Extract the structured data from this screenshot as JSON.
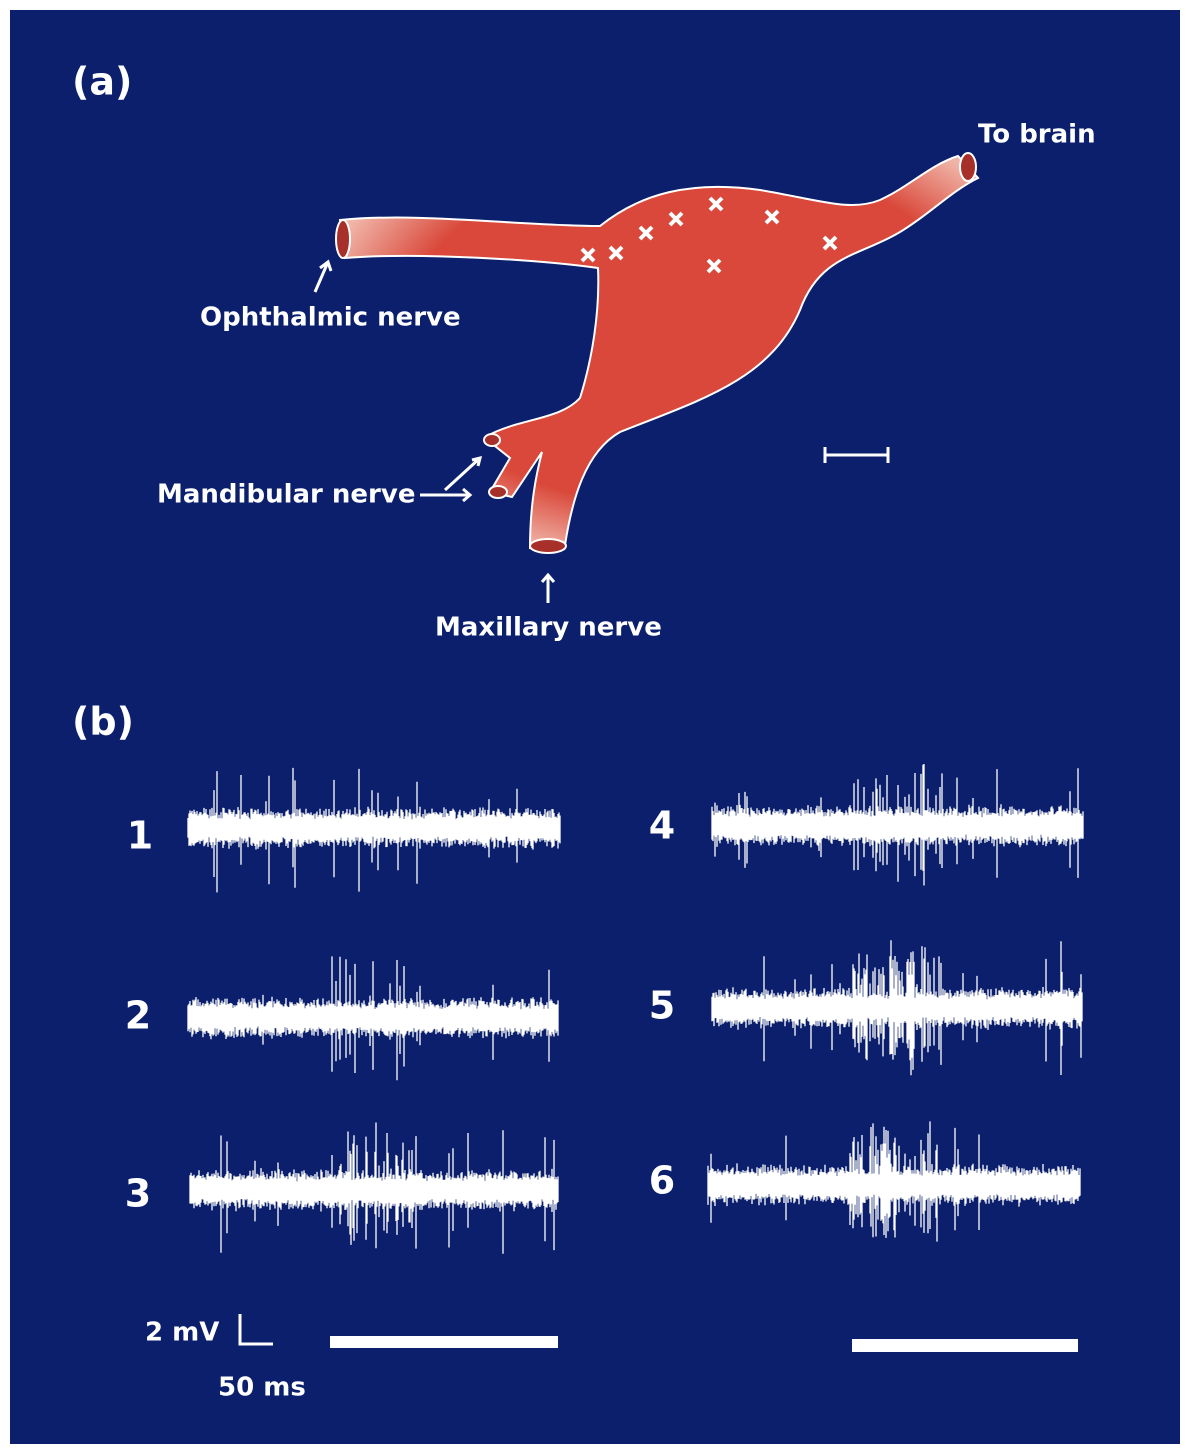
{
  "panel_a": {
    "label": "(a)",
    "to_brain": "To brain",
    "ophthalmic": "Ophthalmic nerve",
    "mandibular": "Mandibular nerve",
    "maxillary": "Maxillary nerve"
  },
  "panel_b": {
    "label": "(b)",
    "traces": [
      "1",
      "2",
      "3",
      "4",
      "5",
      "6"
    ],
    "scale_voltage": "2 mV",
    "scale_time": "50 ms"
  }
}
